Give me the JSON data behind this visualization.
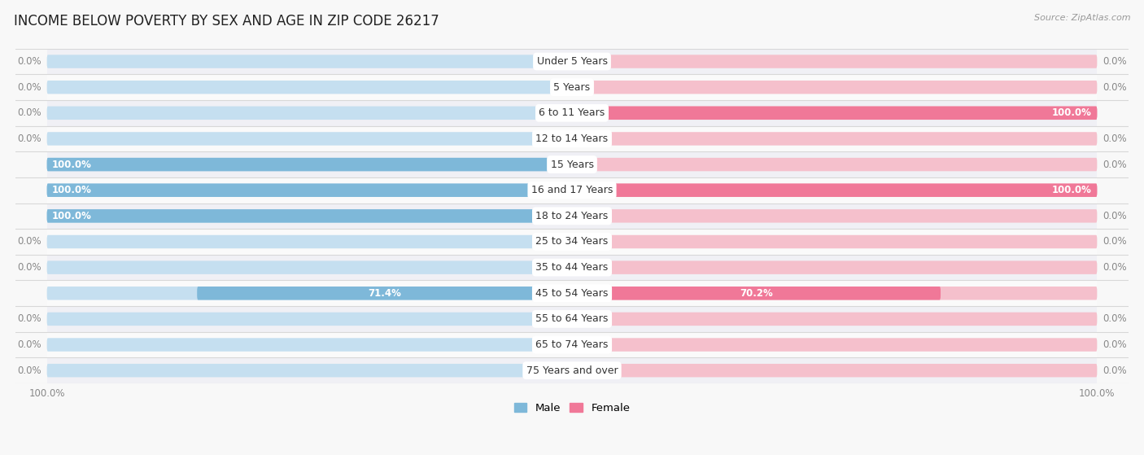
{
  "title": "INCOME BELOW POVERTY BY SEX AND AGE IN ZIP CODE 26217",
  "source": "Source: ZipAtlas.com",
  "categories": [
    "Under 5 Years",
    "5 Years",
    "6 to 11 Years",
    "12 to 14 Years",
    "15 Years",
    "16 and 17 Years",
    "18 to 24 Years",
    "25 to 34 Years",
    "35 to 44 Years",
    "45 to 54 Years",
    "55 to 64 Years",
    "65 to 74 Years",
    "75 Years and over"
  ],
  "male_values": [
    0.0,
    0.0,
    0.0,
    0.0,
    100.0,
    100.0,
    100.0,
    0.0,
    0.0,
    71.4,
    0.0,
    0.0,
    0.0
  ],
  "female_values": [
    0.0,
    0.0,
    100.0,
    0.0,
    0.0,
    100.0,
    0.0,
    0.0,
    0.0,
    70.2,
    0.0,
    0.0,
    0.0
  ],
  "male_color": "#7eb8d9",
  "female_color": "#f07898",
  "male_bg_color": "#c5dff0",
  "female_bg_color": "#f5c0cc",
  "row_bg_even": "#f0f0f5",
  "row_bg_odd": "#fafafa",
  "label_fontsize": 9.0,
  "title_fontsize": 12,
  "xlim": 100.0,
  "bar_height": 0.52,
  "bg_bar_height": 0.52,
  "value_label_color_dark": "#555555",
  "center_label_color": "#333333",
  "grid_color": "#d8d8d8",
  "tick_label_color": "#888888"
}
